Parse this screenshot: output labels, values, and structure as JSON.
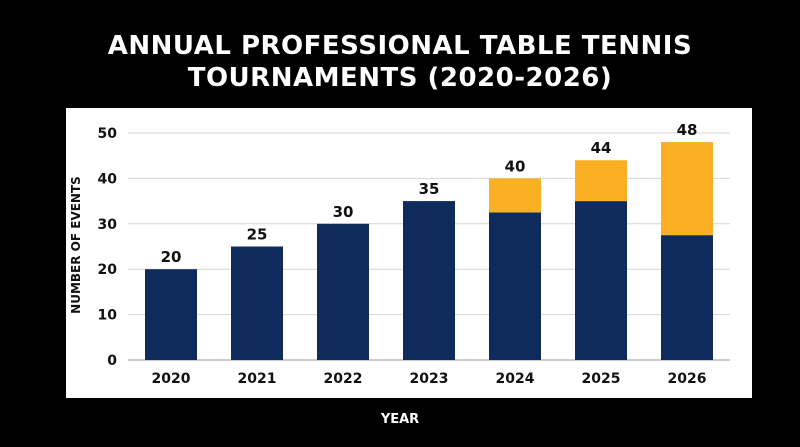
{
  "chart_data": {
    "type": "bar",
    "stacked": true,
    "title_lines": [
      "ANNUAL PROFESSIONAL TABLE TENNIS",
      "TOURNAMENTS (2020-2026)"
    ],
    "xlabel": "YEAR",
    "ylabel": "NUMBER OF EVENTS",
    "categories": [
      "2020",
      "2021",
      "2022",
      "2023",
      "2024",
      "2025",
      "2026"
    ],
    "series": [
      {
        "values": [
          20,
          25,
          30,
          35,
          32.5,
          35,
          27.5
        ],
        "color": "#0f2a5c"
      },
      {
        "values": [
          0,
          0,
          0,
          0,
          7.5,
          9,
          20.5
        ],
        "color": "#fbb024"
      }
    ],
    "totals": [
      "20",
      "25",
      "30",
      "35",
      "40",
      "44",
      "48"
    ],
    "yticks": [
      "0",
      "10",
      "20",
      "30",
      "40",
      "50"
    ],
    "ylim": [
      0,
      50
    ],
    "grid": true,
    "legend": "none"
  }
}
